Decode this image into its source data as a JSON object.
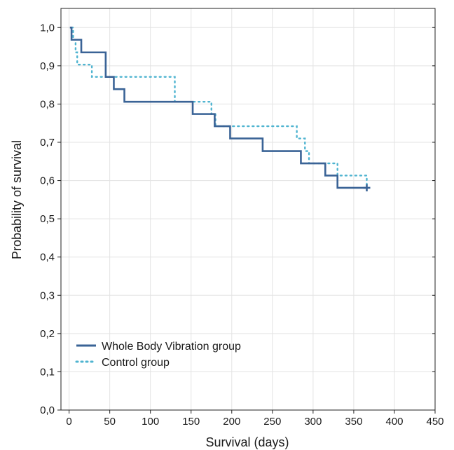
{
  "chart_data": {
    "type": "line",
    "subtype": "kaplan-meier-step",
    "title": "",
    "xlabel": "Survival (days)",
    "ylabel": "Probability of survival",
    "xlim": [
      -10,
      450
    ],
    "ylim": [
      0,
      1.05
    ],
    "x_ticks": [
      0,
      50,
      100,
      150,
      200,
      250,
      300,
      350,
      400,
      450
    ],
    "x_tick_labels": [
      "0",
      "50",
      "100",
      "150",
      "200",
      "250",
      "300",
      "350",
      "400",
      "450"
    ],
    "y_ticks": [
      0,
      0.1,
      0.2,
      0.3,
      0.4,
      0.5,
      0.6,
      0.7,
      0.8,
      0.9,
      1.0
    ],
    "y_tick_labels": [
      "0,0",
      "0,1",
      "0,2",
      "0,3",
      "0,4",
      "0,5",
      "0,6",
      "0,7",
      "0,8",
      "0,9",
      "1,0"
    ],
    "grid": true,
    "legend_position": "bottom-left",
    "series": [
      {
        "name": "Whole Body Vibration group",
        "style": "solid",
        "color": "#3a6396",
        "censored_end": true,
        "points": [
          [
            1,
            1.0
          ],
          [
            3,
            0.968
          ],
          [
            15,
            0.935
          ],
          [
            45,
            0.871
          ],
          [
            55,
            0.839
          ],
          [
            68,
            0.806
          ],
          [
            152,
            0.774
          ],
          [
            179,
            0.742
          ],
          [
            198,
            0.71
          ],
          [
            238,
            0.677
          ],
          [
            285,
            0.645
          ],
          [
            315,
            0.613
          ],
          [
            330,
            0.581
          ],
          [
            366,
            0.581
          ]
        ]
      },
      {
        "name": "Control group",
        "style": "dotted",
        "color": "#4fb4d0",
        "censored_end": false,
        "points": [
          [
            3,
            1.0
          ],
          [
            5,
            0.968
          ],
          [
            8,
            0.935
          ],
          [
            10,
            0.903
          ],
          [
            28,
            0.871
          ],
          [
            130,
            0.806
          ],
          [
            175,
            0.774
          ],
          [
            180,
            0.742
          ],
          [
            280,
            0.71
          ],
          [
            290,
            0.677
          ],
          [
            295,
            0.645
          ],
          [
            330,
            0.613
          ],
          [
            366,
            0.58
          ]
        ]
      }
    ]
  }
}
